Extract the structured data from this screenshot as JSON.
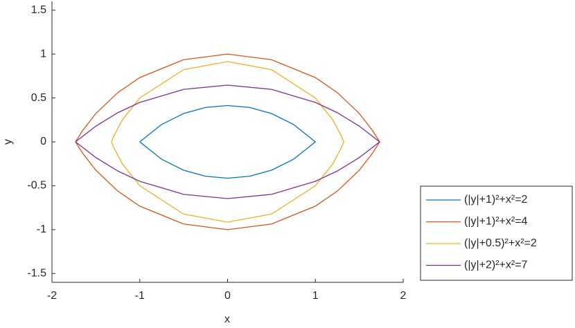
{
  "chart_data": {
    "type": "line",
    "xlabel": "x",
    "ylabel": "y",
    "xlim": [
      -2,
      2
    ],
    "ylim": [
      -1.6,
      1.6
    ],
    "xticks": [
      -2,
      -1,
      0,
      1,
      2
    ],
    "yticks": [
      -1.5,
      -1,
      -0.5,
      0,
      0.5,
      1,
      1.5
    ],
    "legend": "outside-right-bottom",
    "series": [
      {
        "name": "(|y|+1)²+x²=2",
        "color": "#0072BD",
        "x": [
          -1,
          -0.75,
          -0.5,
          -0.25,
          0,
          0.25,
          0.5,
          0.75,
          1,
          0.75,
          0.5,
          0.25,
          0,
          -0.25,
          -0.5,
          -0.75,
          -1
        ],
        "values": [
          0,
          0.199,
          0.323,
          0.392,
          0.414,
          0.392,
          0.323,
          0.199,
          0,
          -0.199,
          -0.323,
          -0.392,
          -0.414,
          -0.392,
          -0.323,
          -0.199,
          0
        ]
      },
      {
        "name": "(|y|+1)²+x²=4",
        "color": "#D95319",
        "x": [
          -1.732,
          -1.65,
          -1.5,
          -1.25,
          -1,
          -0.5,
          0,
          0.5,
          1,
          1.25,
          1.5,
          1.65,
          1.732,
          1.65,
          1.5,
          1.25,
          1,
          0.5,
          0,
          -0.5,
          -1,
          -1.25,
          -1.5,
          -1.65,
          -1.732
        ],
        "values": [
          0,
          0.13,
          0.323,
          0.561,
          0.732,
          0.936,
          1,
          0.936,
          0.732,
          0.561,
          0.323,
          0.13,
          0,
          -0.13,
          -0.323,
          -0.561,
          -0.732,
          -0.936,
          -1,
          -0.936,
          -0.732,
          -0.561,
          -0.323,
          -0.13,
          0
        ]
      },
      {
        "name": "(|y|+0.5)²+x²=2",
        "color": "#EDB120",
        "x": [
          -1.323,
          -1.3,
          -1.2,
          -1,
          -0.5,
          0,
          0.5,
          1,
          1.2,
          1.3,
          1.323,
          1.3,
          1.2,
          1,
          0.5,
          0,
          -0.5,
          -1,
          -1.2,
          -1.3,
          -1.323
        ],
        "values": [
          0,
          0.057,
          0.248,
          0.5,
          0.823,
          0.914,
          0.823,
          0.5,
          0.248,
          0.057,
          0,
          -0.057,
          -0.248,
          -0.5,
          -0.823,
          -0.914,
          -0.823,
          -0.5,
          -0.248,
          -0.057,
          0
        ]
      },
      {
        "name": "(|y|+2)²+x²=7",
        "color": "#7E2F8E",
        "x": [
          -1.732,
          -1.5,
          -1.25,
          -1,
          -0.5,
          0,
          0.5,
          1,
          1.25,
          1.5,
          1.732,
          1.5,
          1.25,
          1,
          0.5,
          0,
          -0.5,
          -1,
          -1.25,
          -1.5,
          -1.732
        ],
        "values": [
          0,
          0.179,
          0.332,
          0.449,
          0.598,
          0.646,
          0.598,
          0.449,
          0.332,
          0.179,
          0,
          -0.179,
          -0.332,
          -0.449,
          -0.598,
          -0.646,
          -0.598,
          -0.449,
          -0.332,
          -0.179,
          0
        ]
      }
    ]
  }
}
